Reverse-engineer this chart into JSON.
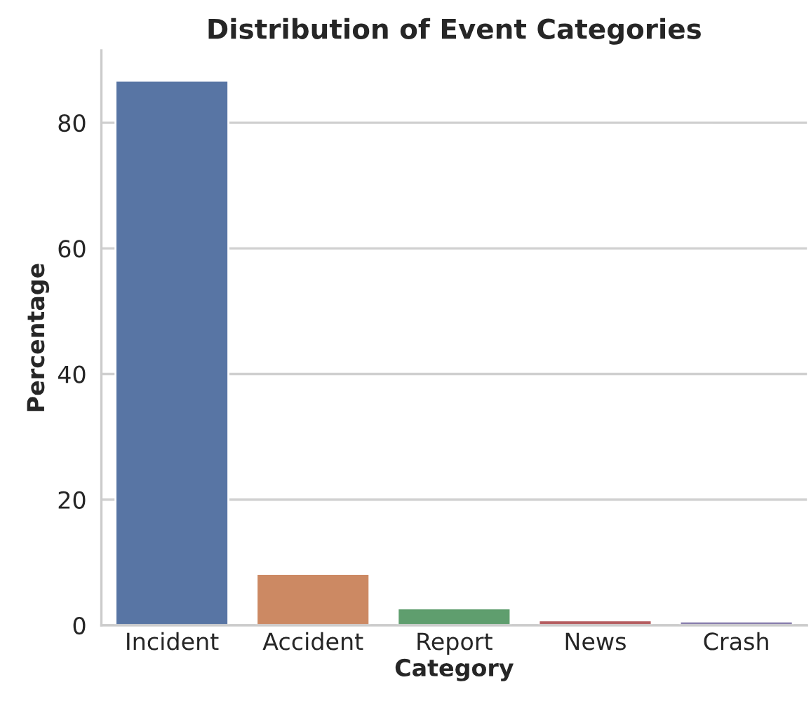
{
  "chart_data": {
    "type": "bar",
    "title": "Distribution of Event Categories",
    "xlabel": "Category",
    "ylabel": "Percentage",
    "categories": [
      "Incident",
      "Accident",
      "Report",
      "News",
      "Crash"
    ],
    "values": [
      86.7,
      8.2,
      2.7,
      0.8,
      0.6
    ],
    "colors": [
      "#5875a4",
      "#cc8963",
      "#5f9e6e",
      "#b55d60",
      "#857aab"
    ],
    "ylim": [
      0,
      91.5
    ],
    "yticks": [
      0,
      20,
      40,
      60,
      80
    ],
    "grid": "y"
  }
}
